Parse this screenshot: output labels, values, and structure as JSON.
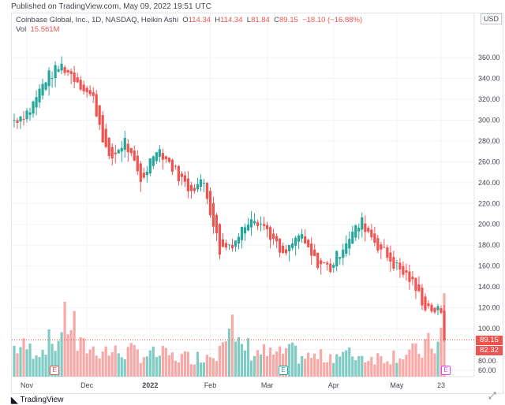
{
  "published": "Published on TradingView.com, May 09, 2022 19:51 UTC",
  "legend": {
    "symbol": "Coinbase Global, Inc., 1D, NASDAQ, Heikin Ashi",
    "o_label": "O",
    "o": "114.34",
    "h_label": "H",
    "h": "114.34",
    "l_label": "L",
    "l": "81.84",
    "c_label": "C",
    "c": "89.15",
    "change": "−18.10 (−16.88%)",
    "vol_label": "Vol",
    "vol": "15.561M"
  },
  "currency": "USD",
  "price_labels": {
    "last": "89.15",
    "other": "82.32"
  },
  "earnings_marker": "E",
  "footer": {
    "brand": "TradingView"
  },
  "colors": {
    "up": "#26a69a",
    "down": "#ef5350",
    "vol_up": "#80cbc4",
    "vol_down": "#f7a9a7",
    "grid": "#f0f3fa",
    "earnings_magenta": "#e040fb"
  },
  "chart_data": {
    "type": "candlestick",
    "style": "Heikin Ashi",
    "ylim": [
      50,
      380
    ],
    "yticks": [
      60,
      80,
      100,
      120,
      140,
      160,
      180,
      200,
      220,
      240,
      260,
      280,
      300,
      320,
      340,
      360
    ],
    "ytick_labels": [
      "60.00",
      "80.00",
      "100.00",
      "120.00",
      "140.00",
      "160.00",
      "180.00",
      "200.00",
      "220.00",
      "240.00",
      "260.00",
      "280.00",
      "300.00",
      "320.00",
      "340.00",
      "360.00"
    ],
    "xtick_labels": [
      "Nov",
      "Dec",
      "2022",
      "Feb",
      "Mar",
      "Apr",
      "May",
      "23"
    ],
    "xtick_day_index": [
      4,
      23,
      43,
      62,
      80,
      101,
      121,
      135
    ],
    "days_per_week": 5,
    "weekly_close": [
      300,
      310,
      340,
      352,
      338,
      320,
      260,
      280,
      240,
      275,
      255,
      235,
      240,
      175,
      185,
      210,
      195,
      168,
      190,
      165,
      158,
      185,
      202,
      180,
      162,
      148,
      122,
      115
    ],
    "last_close": 89.15,
    "weekly_volume_M": [
      12,
      11,
      14,
      22,
      12,
      11,
      10,
      10,
      9,
      9,
      8,
      8,
      9,
      21,
      12,
      10,
      9,
      10,
      8,
      8,
      9,
      9,
      8,
      8,
      9,
      10,
      13,
      20
    ],
    "earnings_day_index": [
      12,
      78,
      128
    ]
  }
}
